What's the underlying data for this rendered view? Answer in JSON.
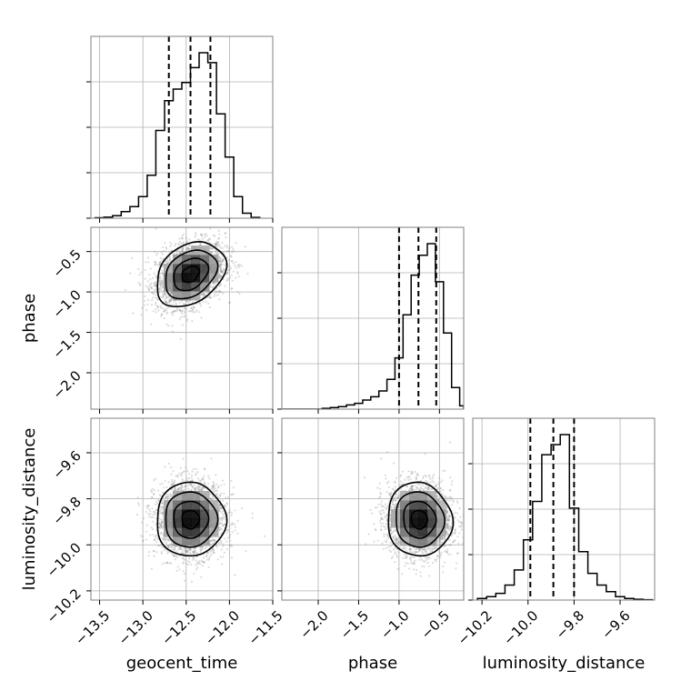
{
  "chart_data": {
    "type": "corner",
    "parameters": [
      "geocent_time",
      "phase",
      "luminosity_distance"
    ],
    "ranges": {
      "geocent_time": [
        -13.6,
        -11.5
      ],
      "phase": [
        -2.45,
        -0.2
      ],
      "luminosity_distance": [
        -10.24,
        -9.45
      ]
    },
    "ticks": {
      "geocent_time": [
        {
          "v": -13.5,
          "label": "−13.5"
        },
        {
          "v": -13.0,
          "label": "−13.0"
        },
        {
          "v": -12.5,
          "label": "−12.5"
        },
        {
          "v": -12.0,
          "label": "−12.0"
        },
        {
          "v": -11.5,
          "label": "−11.5"
        }
      ],
      "phase": [
        {
          "v": -2.0,
          "label": "−2.0"
        },
        {
          "v": -1.5,
          "label": "−1.5"
        },
        {
          "v": -1.0,
          "label": "−1.0"
        },
        {
          "v": -0.5,
          "label": "−0.5"
        }
      ],
      "luminosity_distance": [
        {
          "v": -10.2,
          "label": "−10.2"
        },
        {
          "v": -10.0,
          "label": "−10.0"
        },
        {
          "v": -9.8,
          "label": "−9.8"
        },
        {
          "v": -9.6,
          "label": "−9.6"
        }
      ]
    },
    "quantiles": {
      "geocent_time": [
        -12.7,
        -12.45,
        -12.22
      ],
      "phase": [
        -1.0,
        -0.76,
        -0.54
      ],
      "luminosity_distance": [
        -9.99,
        -9.89,
        -9.8
      ]
    },
    "histograms": {
      "geocent_time": {
        "edges": [
          -13.55,
          -13.45,
          -13.35,
          -13.25,
          -13.15,
          -13.05,
          -12.95,
          -12.85,
          -12.75,
          -12.65,
          -12.55,
          -12.45,
          -12.35,
          -12.25,
          -12.15,
          -12.05,
          -11.95,
          -11.85,
          -11.75,
          -11.65
        ],
        "counts": [
          0.003,
          0.006,
          0.015,
          0.04,
          0.07,
          0.13,
          0.26,
          0.53,
          0.71,
          0.78,
          0.82,
          0.91,
          1.0,
          0.94,
          0.63,
          0.37,
          0.13,
          0.03,
          0.005
        ]
      },
      "phase": {
        "edges": [
          -2.45,
          -2.35,
          -2.25,
          -2.15,
          -2.05,
          -1.95,
          -1.85,
          -1.75,
          -1.65,
          -1.55,
          -1.45,
          -1.35,
          -1.25,
          -1.15,
          -1.05,
          -0.95,
          -0.85,
          -0.75,
          -0.65,
          -0.55,
          -0.45,
          -0.35,
          -0.25,
          -0.2
        ],
        "counts": [
          0,
          0,
          0,
          0,
          0,
          0.005,
          0.01,
          0.015,
          0.025,
          0.035,
          0.055,
          0.075,
          0.11,
          0.18,
          0.31,
          0.57,
          0.81,
          0.93,
          1.0,
          0.77,
          0.46,
          0.13,
          0.02
        ]
      },
      "luminosity_distance": {
        "edges": [
          -10.22,
          -10.18,
          -10.14,
          -10.1,
          -10.06,
          -10.02,
          -9.98,
          -9.94,
          -9.9,
          -9.86,
          -9.82,
          -9.78,
          -9.74,
          -9.7,
          -9.66,
          -9.62,
          -9.58,
          -9.54,
          -9.5,
          -9.46
        ],
        "counts": [
          0.01,
          0.02,
          0.04,
          0.09,
          0.18,
          0.36,
          0.59,
          0.87,
          0.93,
          0.99,
          0.55,
          0.29,
          0.16,
          0.09,
          0.05,
          0.02,
          0.01,
          0.005,
          0.002
        ]
      }
    },
    "pairs": [
      {
        "x": "geocent_time",
        "y": "phase",
        "mean": [
          -12.45,
          -0.78
        ],
        "sigma": [
          0.2,
          0.2
        ],
        "rho": 0.3
      },
      {
        "x": "geocent_time",
        "y": "luminosity_distance",
        "mean": [
          -12.45,
          -9.89
        ],
        "sigma": [
          0.2,
          0.08
        ],
        "rho": 0.0
      },
      {
        "x": "phase",
        "y": "luminosity_distance",
        "mean": [
          -0.75,
          -9.89
        ],
        "sigma": [
          0.2,
          0.08
        ],
        "rho": -0.05
      }
    ],
    "contour_levels": [
      0.5,
      1.0,
      1.5,
      2.0
    ],
    "grid": true,
    "colors": {
      "hist": "#000000",
      "scatter": "#808080",
      "grid": "#b0b0b0",
      "spine": "#808080"
    }
  }
}
